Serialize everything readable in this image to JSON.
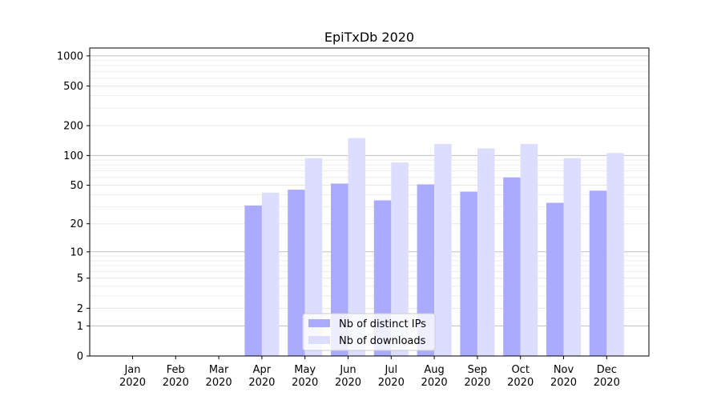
{
  "chart_data": {
    "type": "bar",
    "title": "EpiTxDb 2020",
    "xlabel": "",
    "ylabel": "",
    "yscale": "log1p",
    "ylim": [
      0,
      1200
    ],
    "yticks": [
      0,
      1,
      2,
      5,
      10,
      20,
      50,
      100,
      200,
      500,
      1000
    ],
    "grid": "horizontal",
    "legend_position": "bottom-center",
    "categories": [
      "Jan\n2020",
      "Feb\n2020",
      "Mar\n2020",
      "Apr\n2020",
      "May\n2020",
      "Jun\n2020",
      "Jul\n2020",
      "Aug\n2020",
      "Sep\n2020",
      "Oct\n2020",
      "Nov\n2020",
      "Dec\n2020"
    ],
    "series": [
      {
        "name": "Nb of distinct IPs",
        "color": "#aaaaff",
        "values": [
          0,
          0,
          0,
          31,
          45,
          52,
          35,
          51,
          43,
          60,
          33,
          44
        ]
      },
      {
        "name": "Nb of downloads",
        "color": "#ddddff",
        "values": [
          0,
          0,
          0,
          42,
          94,
          150,
          85,
          131,
          118,
          131,
          94,
          106
        ]
      }
    ]
  }
}
